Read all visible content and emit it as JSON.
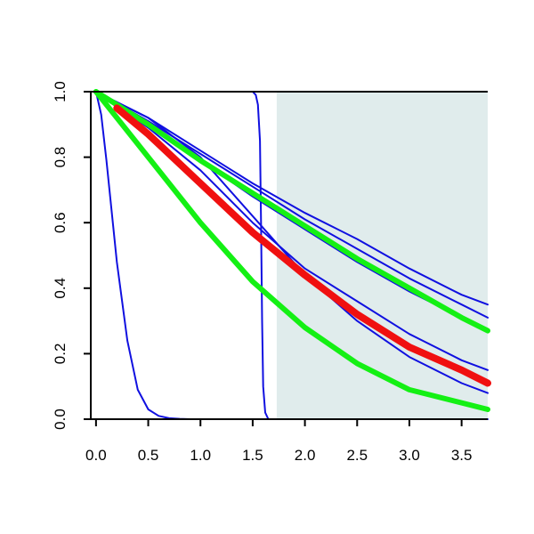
{
  "chart_data": {
    "type": "line",
    "title": "",
    "xlabel": "",
    "ylabel": "",
    "xlim": [
      -0.05,
      3.75
    ],
    "ylim": [
      0.0,
      1.0
    ],
    "x_ticks": [
      {
        "value": 0.0,
        "label": "0.0"
      },
      {
        "value": 0.5,
        "label": "0.5"
      },
      {
        "value": 1.0,
        "label": "1.0"
      },
      {
        "value": 1.5,
        "label": "1.5"
      },
      {
        "value": 2.0,
        "label": "2.0"
      },
      {
        "value": 2.5,
        "label": "2.5"
      },
      {
        "value": 3.0,
        "label": "3.0"
      },
      {
        "value": 3.5,
        "label": "3.5"
      }
    ],
    "y_ticks": [
      {
        "value": 0.0,
        "label": "0.0"
      },
      {
        "value": 0.2,
        "label": "0.2"
      },
      {
        "value": 0.4,
        "label": "0.4"
      },
      {
        "value": 0.6,
        "label": "0.6"
      },
      {
        "value": 0.8,
        "label": "0.8"
      },
      {
        "value": 1.0,
        "label": "1.0"
      }
    ],
    "grid": false,
    "legend": "none",
    "shaded_region": {
      "x_from": 1.73,
      "x_to": 3.75,
      "color": "#e0ecec"
    },
    "colors": {
      "blue": "#1010e0",
      "green": "#14f014",
      "red": "#f01010",
      "axis": "#000000"
    },
    "series": [
      {
        "color": "#1010e0",
        "width": 2,
        "x": [
          0,
          0.05,
          0.1,
          0.2,
          0.3,
          0.4,
          0.5,
          0.6,
          0.7,
          0.8,
          0.9,
          1.0
        ],
        "y": [
          1.0,
          0.93,
          0.79,
          0.48,
          0.24,
          0.09,
          0.03,
          0.01,
          0.003,
          0.001,
          0.0,
          0.0
        ]
      },
      {
        "color": "#1010e0",
        "width": 2,
        "x": [
          0,
          1.45,
          1.5,
          1.53,
          1.55,
          1.57,
          1.58,
          1.59,
          1.6,
          1.62,
          1.65,
          3.75
        ],
        "y": [
          1.0,
          1.0,
          1.0,
          0.99,
          0.96,
          0.85,
          0.6,
          0.3,
          0.1,
          0.02,
          0.0,
          0.0
        ]
      },
      {
        "color": "#1010e0",
        "width": 2,
        "x": [
          0,
          0.5,
          1.0,
          1.5,
          2.0,
          2.5,
          3.0,
          3.5,
          3.75
        ],
        "y": [
          1.0,
          0.92,
          0.82,
          0.72,
          0.63,
          0.55,
          0.46,
          0.38,
          0.35
        ]
      },
      {
        "color": "#1010e0",
        "width": 2,
        "x": [
          0,
          0.5,
          1.0,
          1.5,
          2.0,
          2.5,
          3.0,
          3.5,
          3.75
        ],
        "y": [
          1.0,
          0.91,
          0.81,
          0.71,
          0.61,
          0.52,
          0.43,
          0.35,
          0.31
        ]
      },
      {
        "color": "#1010e0",
        "width": 2,
        "x": [
          0,
          0.5,
          1.0,
          1.5,
          2.0,
          2.5,
          3.0,
          3.5,
          3.75
        ],
        "y": [
          1.0,
          0.9,
          0.79,
          0.68,
          0.58,
          0.48,
          0.39,
          0.31,
          0.27
        ]
      },
      {
        "color": "#1010e0",
        "width": 2,
        "x": [
          0,
          0.5,
          1.0,
          1.5,
          2.0,
          2.5,
          3.0,
          3.5,
          3.75
        ],
        "y": [
          1.0,
          0.89,
          0.76,
          0.6,
          0.46,
          0.36,
          0.26,
          0.18,
          0.15
        ]
      },
      {
        "color": "#1010e0",
        "width": 2,
        "x": [
          0,
          0.5,
          1.0,
          1.5,
          2.0,
          2.5,
          3.0,
          3.5,
          3.75
        ],
        "y": [
          1.0,
          0.92,
          0.8,
          0.62,
          0.44,
          0.3,
          0.19,
          0.11,
          0.08
        ]
      },
      {
        "color": "#14f014",
        "width": 6,
        "x": [
          0,
          0.5,
          1.0,
          1.5,
          2.0,
          2.5,
          3.0,
          3.5,
          3.75
        ],
        "y": [
          1.0,
          0.8,
          0.6,
          0.42,
          0.28,
          0.17,
          0.09,
          0.05,
          0.03
        ]
      },
      {
        "color": "#14f014",
        "width": 6,
        "x": [
          0,
          0.5,
          1.0,
          1.5,
          2.0,
          2.5,
          3.0,
          3.5,
          3.75
        ],
        "y": [
          1.0,
          0.9,
          0.79,
          0.69,
          0.59,
          0.49,
          0.4,
          0.31,
          0.27
        ]
      },
      {
        "color": "#f01010",
        "width": 8,
        "x": [
          0.2,
          0.5,
          1.0,
          1.5,
          2.0,
          2.5,
          3.0,
          3.5,
          3.75
        ],
        "y": [
          0.95,
          0.87,
          0.72,
          0.57,
          0.44,
          0.32,
          0.22,
          0.15,
          0.11
        ]
      }
    ]
  }
}
